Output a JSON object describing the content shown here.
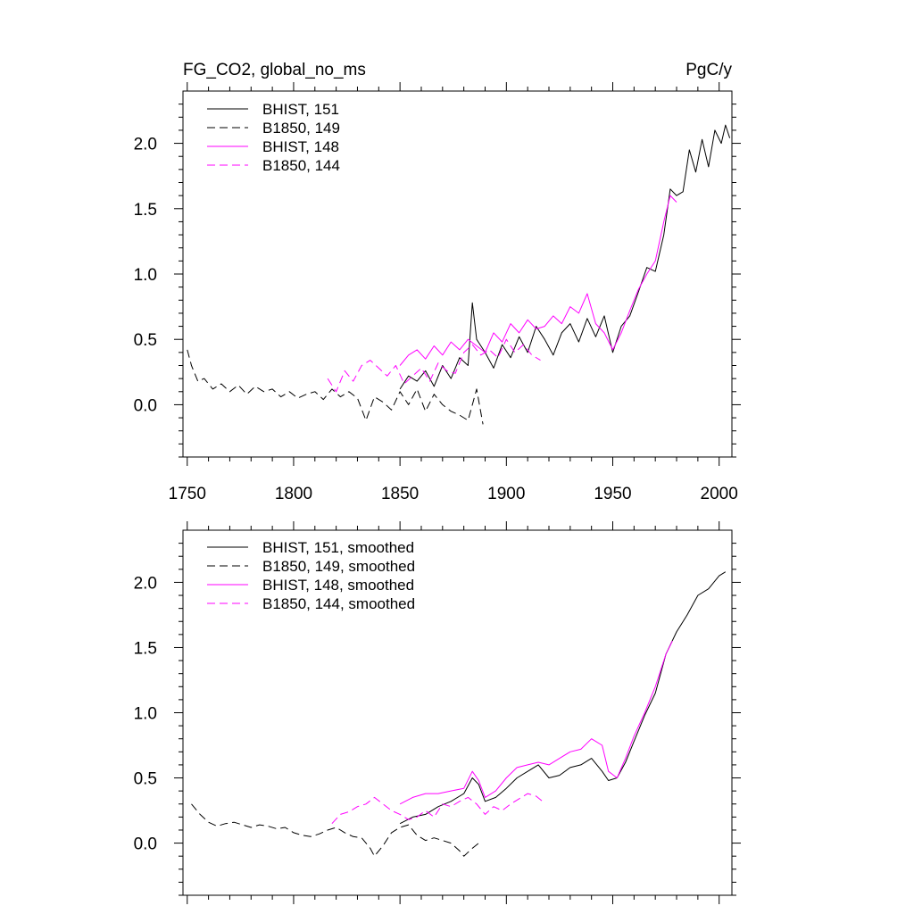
{
  "chart_data": [
    {
      "type": "line",
      "panel": "top",
      "title_left": "FG_CO2, global_no_ms",
      "title_right": "PgC/y",
      "xlabel": "",
      "ylabel": "",
      "xlim": [
        1748,
        2006
      ],
      "ylim": [
        -0.4,
        2.4
      ],
      "x_ticks": [
        1750,
        1800,
        1850,
        1900,
        1950,
        2000
      ],
      "x_tick_labels": [
        "1750",
        "1800",
        "1850",
        "1900",
        "1950",
        "2000"
      ],
      "y_ticks": [
        0.0,
        0.5,
        1.0,
        1.5,
        2.0
      ],
      "y_tick_labels": [
        "0.0",
        "0.5",
        "1.0",
        "1.5",
        "2.0"
      ],
      "legend_position": "top-left",
      "series": [
        {
          "name": "BHIST, 151",
          "color": "#000000",
          "dash": "solid",
          "x": [
            1850,
            1854,
            1858,
            1862,
            1866,
            1870,
            1874,
            1878,
            1882,
            1884,
            1886,
            1890,
            1894,
            1898,
            1902,
            1906,
            1910,
            1914,
            1918,
            1922,
            1926,
            1930,
            1934,
            1938,
            1942,
            1946,
            1950,
            1954,
            1958,
            1962,
            1966,
            1970,
            1974,
            1977,
            1980,
            1983,
            1986,
            1989,
            1992,
            1995,
            1998,
            2001,
            2003,
            2005
          ],
          "y": [
            0.12,
            0.22,
            0.18,
            0.26,
            0.14,
            0.3,
            0.2,
            0.36,
            0.3,
            0.78,
            0.5,
            0.4,
            0.28,
            0.46,
            0.36,
            0.52,
            0.4,
            0.6,
            0.5,
            0.38,
            0.55,
            0.62,
            0.48,
            0.66,
            0.52,
            0.68,
            0.4,
            0.6,
            0.68,
            0.86,
            1.05,
            1.02,
            1.3,
            1.65,
            1.6,
            1.63,
            1.95,
            1.78,
            2.03,
            1.82,
            2.1,
            2.0,
            2.14,
            2.04
          ]
        },
        {
          "name": "B1850, 149",
          "color": "#000000",
          "dash": "dashed",
          "x": [
            1750,
            1752,
            1755,
            1758,
            1762,
            1766,
            1770,
            1774,
            1778,
            1782,
            1786,
            1790,
            1794,
            1798,
            1802,
            1806,
            1810,
            1814,
            1818,
            1822,
            1826,
            1830,
            1834,
            1838,
            1842,
            1846,
            1850,
            1854,
            1858,
            1862,
            1866,
            1870,
            1874,
            1878,
            1882,
            1886,
            1889
          ],
          "y": [
            0.42,
            0.3,
            0.18,
            0.2,
            0.12,
            0.16,
            0.1,
            0.15,
            0.08,
            0.14,
            0.1,
            0.12,
            0.06,
            0.1,
            0.05,
            0.08,
            0.1,
            0.04,
            0.12,
            0.06,
            0.1,
            0.05,
            -0.12,
            0.06,
            0.02,
            -0.04,
            0.1,
            0.0,
            0.12,
            -0.05,
            0.08,
            0.0,
            -0.05,
            -0.08,
            -0.12,
            0.12,
            -0.15
          ]
        },
        {
          "name": "BHIST, 148",
          "color": "#ff00ff",
          "dash": "solid",
          "x": [
            1850,
            1854,
            1858,
            1862,
            1866,
            1870,
            1874,
            1878,
            1882,
            1886,
            1890,
            1894,
            1898,
            1902,
            1906,
            1910,
            1914,
            1918,
            1922,
            1926,
            1930,
            1934,
            1938,
            1942,
            1946,
            1950,
            1954,
            1958,
            1962,
            1966,
            1970,
            1974,
            1977,
            1980
          ],
          "y": [
            0.3,
            0.38,
            0.42,
            0.35,
            0.45,
            0.38,
            0.48,
            0.42,
            0.5,
            0.45,
            0.4,
            0.55,
            0.48,
            0.62,
            0.55,
            0.65,
            0.58,
            0.6,
            0.68,
            0.62,
            0.75,
            0.7,
            0.85,
            0.62,
            0.55,
            0.42,
            0.55,
            0.72,
            0.88,
            1.0,
            1.1,
            1.4,
            1.6,
            1.55
          ]
        },
        {
          "name": "B1850, 144",
          "color": "#ff00ff",
          "dash": "dashed",
          "x": [
            1816,
            1820,
            1824,
            1828,
            1832,
            1836,
            1840,
            1844,
            1848,
            1852,
            1856,
            1860,
            1864,
            1868,
            1872,
            1876,
            1880,
            1884,
            1888,
            1892,
            1896,
            1900,
            1904,
            1908,
            1912,
            1916
          ],
          "y": [
            0.2,
            0.1,
            0.26,
            0.18,
            0.3,
            0.34,
            0.28,
            0.22,
            0.3,
            0.16,
            0.22,
            0.28,
            0.18,
            0.32,
            0.26,
            0.24,
            0.4,
            0.46,
            0.38,
            0.42,
            0.36,
            0.5,
            0.4,
            0.46,
            0.38,
            0.34
          ]
        }
      ]
    },
    {
      "type": "line",
      "panel": "bottom",
      "xlim": [
        1748,
        2006
      ],
      "ylim": [
        -0.4,
        2.4
      ],
      "x_ticks": [
        1750,
        1800,
        1850,
        1900,
        1950,
        2000
      ],
      "y_ticks": [
        0.0,
        0.5,
        1.0,
        1.5,
        2.0
      ],
      "y_tick_labels": [
        "0.0",
        "0.5",
        "1.0",
        "1.5",
        "2.0"
      ],
      "legend_position": "top-left",
      "series": [
        {
          "name": "BHIST, 151, smoothed",
          "color": "#000000",
          "dash": "solid",
          "x": [
            1850,
            1856,
            1862,
            1868,
            1874,
            1880,
            1884,
            1887,
            1890,
            1895,
            1900,
            1905,
            1910,
            1915,
            1920,
            1925,
            1930,
            1935,
            1940,
            1945,
            1948,
            1952,
            1956,
            1960,
            1965,
            1970,
            1975,
            1980,
            1985,
            1990,
            1995,
            2000,
            2003
          ],
          "y": [
            0.15,
            0.2,
            0.22,
            0.28,
            0.32,
            0.38,
            0.5,
            0.45,
            0.32,
            0.35,
            0.42,
            0.5,
            0.55,
            0.6,
            0.5,
            0.52,
            0.58,
            0.6,
            0.65,
            0.55,
            0.48,
            0.5,
            0.62,
            0.78,
            0.98,
            1.15,
            1.45,
            1.62,
            1.75,
            1.9,
            1.95,
            2.05,
            2.08
          ]
        },
        {
          "name": "B1850, 149, smoothed",
          "color": "#000000",
          "dash": "dashed",
          "x": [
            1752,
            1756,
            1760,
            1764,
            1768,
            1772,
            1776,
            1780,
            1784,
            1788,
            1792,
            1796,
            1800,
            1804,
            1808,
            1812,
            1816,
            1820,
            1824,
            1828,
            1832,
            1836,
            1838,
            1842,
            1846,
            1850,
            1854,
            1858,
            1862,
            1866,
            1870,
            1874,
            1878,
            1880,
            1884,
            1887
          ],
          "y": [
            0.3,
            0.22,
            0.16,
            0.13,
            0.15,
            0.16,
            0.14,
            0.12,
            0.14,
            0.13,
            0.11,
            0.12,
            0.08,
            0.06,
            0.05,
            0.07,
            0.1,
            0.12,
            0.08,
            0.05,
            0.04,
            -0.04,
            -0.1,
            -0.02,
            0.08,
            0.12,
            0.14,
            0.06,
            0.02,
            0.04,
            0.02,
            0.0,
            -0.06,
            -0.1,
            -0.04,
            0.0
          ]
        },
        {
          "name": "BHIST, 148, smoothed",
          "color": "#ff00ff",
          "dash": "solid",
          "x": [
            1850,
            1856,
            1862,
            1868,
            1874,
            1880,
            1884,
            1887,
            1890,
            1895,
            1900,
            1905,
            1910,
            1915,
            1920,
            1925,
            1930,
            1935,
            1940,
            1945,
            1948,
            1952,
            1956,
            1960,
            1965,
            1970,
            1975,
            1978
          ],
          "y": [
            0.3,
            0.35,
            0.38,
            0.38,
            0.4,
            0.42,
            0.55,
            0.48,
            0.35,
            0.4,
            0.5,
            0.58,
            0.6,
            0.62,
            0.6,
            0.65,
            0.7,
            0.72,
            0.8,
            0.75,
            0.55,
            0.5,
            0.65,
            0.82,
            1.0,
            1.2,
            1.45,
            1.55
          ]
        },
        {
          "name": "B1850, 144, smoothed",
          "color": "#ff00ff",
          "dash": "dashed",
          "x": [
            1818,
            1822,
            1826,
            1830,
            1834,
            1838,
            1842,
            1846,
            1850,
            1854,
            1858,
            1862,
            1866,
            1870,
            1874,
            1878,
            1882,
            1886,
            1890,
            1894,
            1898,
            1902,
            1906,
            1910,
            1914,
            1917
          ],
          "y": [
            0.15,
            0.22,
            0.24,
            0.28,
            0.3,
            0.35,
            0.3,
            0.25,
            0.22,
            0.18,
            0.2,
            0.25,
            0.2,
            0.3,
            0.28,
            0.32,
            0.35,
            0.3,
            0.22,
            0.28,
            0.25,
            0.3,
            0.34,
            0.38,
            0.36,
            0.32
          ]
        }
      ]
    }
  ]
}
